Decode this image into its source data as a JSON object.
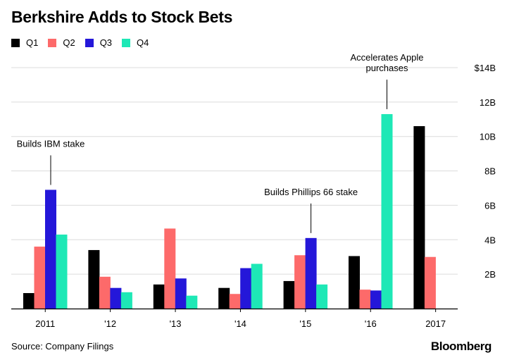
{
  "title": "Berkshire Adds to Stock Bets",
  "source": "Source: Company Filings",
  "logo": "Bloomberg",
  "colors": {
    "Q1": "#000000",
    "Q2": "#fd6a6a",
    "Q3": "#2417d9",
    "Q4": "#1ee8b6",
    "grid": "#dcdcdc",
    "axis": "#000000"
  },
  "chart_data": {
    "type": "bar",
    "categories": [
      "2011",
      "'12",
      "'13",
      "'14",
      "'15",
      "'16",
      "2017"
    ],
    "series": [
      {
        "name": "Q1",
        "values": [
          0.9,
          3.4,
          1.4,
          1.2,
          1.6,
          3.05,
          10.6
        ]
      },
      {
        "name": "Q2",
        "values": [
          3.6,
          1.85,
          4.65,
          0.85,
          3.1,
          1.1,
          3.0
        ]
      },
      {
        "name": "Q3",
        "values": [
          6.9,
          1.2,
          1.75,
          2.35,
          4.1,
          1.05,
          null
        ]
      },
      {
        "name": "Q4",
        "values": [
          4.3,
          0.95,
          0.75,
          2.6,
          1.4,
          11.3,
          null
        ]
      }
    ],
    "y_ticks": [
      "$14B",
      "12B",
      "10B",
      "8B",
      "6B",
      "4B",
      "2B"
    ],
    "y_tick_values": [
      14,
      12,
      10,
      8,
      6,
      4,
      2
    ],
    "ylim": [
      0,
      14
    ],
    "grid": true,
    "legend_position": "top-left",
    "annotations": [
      {
        "lines": [
          "Builds IBM stake"
        ],
        "category": 0,
        "series": 2
      },
      {
        "lines": [
          "Builds Phillips 66 stake"
        ],
        "category": 4,
        "series": 2
      },
      {
        "lines": [
          "Accelerates Apple",
          "purchases"
        ],
        "category": 5,
        "series": 3
      }
    ]
  }
}
